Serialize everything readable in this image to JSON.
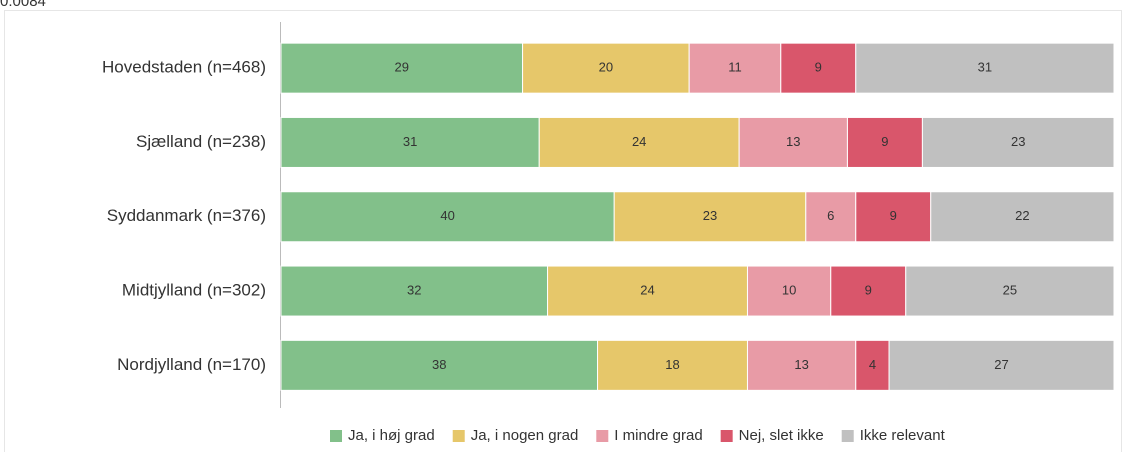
{
  "chart_data": {
    "type": "stacked-bar",
    "orientation": "horizontal",
    "annotation": "0.0084",
    "categories": [
      "Hovedstaden (n=468)",
      "Sjælland (n=238)",
      "Syddanmark (n=376)",
      "Midtjylland (n=302)",
      "Nordjylland (n=170)"
    ],
    "series": [
      {
        "name": "Ja, i høj grad",
        "color": "#82c08a",
        "values": [
          29,
          31,
          40,
          32,
          38
        ]
      },
      {
        "name": "Ja, i nogen grad",
        "color": "#e6c76a",
        "values": [
          20,
          24,
          23,
          24,
          18
        ]
      },
      {
        "name": "I mindre grad",
        "color": "#e89ba6",
        "values": [
          11,
          13,
          6,
          10,
          13
        ]
      },
      {
        "name": "Nej, slet ikke",
        "color": "#d9566b",
        "values": [
          9,
          9,
          9,
          9,
          4
        ]
      },
      {
        "name": "Ikke relevant",
        "color": "#c0c0c0",
        "values": [
          31,
          23,
          22,
          25,
          27
        ]
      }
    ],
    "xlim": [
      0,
      100
    ],
    "legend": "bottom"
  }
}
